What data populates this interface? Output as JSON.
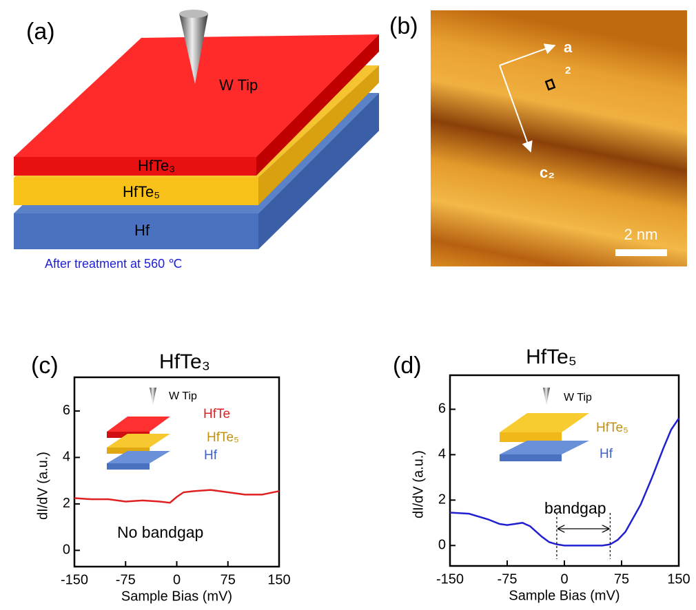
{
  "panel_a": {
    "label": "(a)",
    "tip": "W Tip",
    "layer_top": "HfTe₃",
    "layer_middle": "HfTe₅",
    "layer_bottom": "Hf",
    "caption": "After treatment at 560 ℃"
  },
  "panel_b": {
    "label": "(b)",
    "axis_a": "a",
    "axis_a_sub": "2",
    "axis_c": "c₂",
    "scale": "2 nm"
  },
  "chart_data": [
    {
      "type": "line",
      "panel_label": "(c)",
      "title": "HfTe₃",
      "xlabel": "Sample Bias (mV)",
      "ylabel": "dI/dV (a.u.)",
      "x": [
        -150,
        -125,
        -100,
        -75,
        -50,
        -25,
        -10,
        0,
        10,
        25,
        50,
        75,
        100,
        125,
        150
      ],
      "values": [
        2.25,
        2.2,
        2.2,
        2.1,
        2.15,
        2.1,
        2.05,
        2.3,
        2.5,
        2.55,
        2.6,
        2.5,
        2.4,
        2.4,
        2.55
      ],
      "color": "#e02020",
      "xlim": [
        -150,
        150
      ],
      "ylim": [
        -0.7,
        7.45
      ],
      "xticks": [
        -150,
        -75,
        0,
        75,
        150
      ],
      "yticks": [
        0,
        2,
        4,
        6
      ],
      "annotations": [
        "W Tip",
        "HfTe",
        "HfTe₅",
        "Hf",
        "No bandgap"
      ]
    },
    {
      "type": "line",
      "panel_label": "(d)",
      "title": "HfTe₅",
      "xlabel": "Sample Bias (mV)",
      "ylabel": "dI/dV (a.u.)",
      "x": [
        -150,
        -125,
        -100,
        -85,
        -75,
        -65,
        -55,
        -45,
        -30,
        -20,
        -10,
        0,
        25,
        50,
        60,
        70,
        80,
        100,
        115,
        130,
        140,
        150
      ],
      "values": [
        1.45,
        1.4,
        1.15,
        0.95,
        0.9,
        0.95,
        1.0,
        0.85,
        0.4,
        0.15,
        0.05,
        0,
        0,
        0,
        0.05,
        0.25,
        0.6,
        1.8,
        3.0,
        4.3,
        5.1,
        5.6
      ],
      "color": "#2020d0",
      "xlim": [
        -150,
        150
      ],
      "ylim": [
        -0.9,
        7.5
      ],
      "xticks": [
        -150,
        -75,
        0,
        75,
        150
      ],
      "yticks": [
        0,
        2,
        4,
        6
      ],
      "annotations": [
        "W Tip",
        "HfTe₅",
        "Hf",
        "bandgap"
      ],
      "bandgap_range": [
        -10,
        60
      ]
    }
  ]
}
